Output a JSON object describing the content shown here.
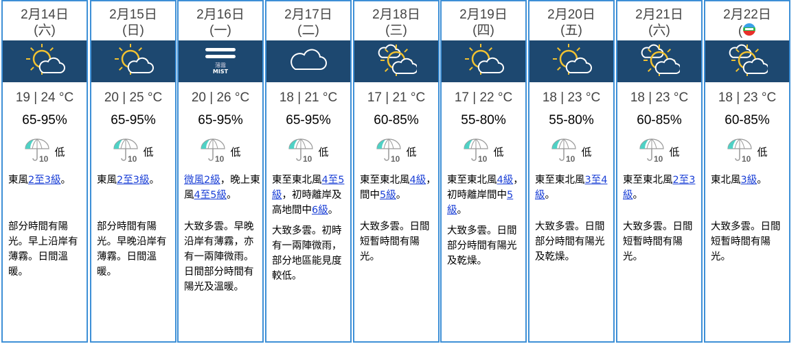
{
  "colors": {
    "border": "#3d8fd6",
    "icon_band": "#1d4870",
    "sun": "#f2c230",
    "link": "#1a3fd6"
  },
  "days": [
    {
      "date": "2月14日",
      "weekday": "(六)",
      "icon": "sun-cloud-icon",
      "temp": "19 | 24 °C",
      "humidity": "65-95%",
      "psr": "低",
      "wind": [
        {
          "t": "東風"
        },
        {
          "t": "2至3級",
          "link": true
        },
        {
          "t": "。"
        }
      ],
      "desc": "部分時間有陽光。早上沿岸有薄霧。日間溫暖。"
    },
    {
      "date": "2月15日",
      "weekday": "(日)",
      "icon": "sun-cloud-icon",
      "temp": "20 | 25 °C",
      "humidity": "65-95%",
      "psr": "低",
      "wind": [
        {
          "t": "東風"
        },
        {
          "t": "2至3級",
          "link": true
        },
        {
          "t": "。"
        }
      ],
      "desc": "部分時間有陽光。早晚沿岸有薄霧。日間溫暖。"
    },
    {
      "date": "2月16日",
      "weekday": "(一)",
      "icon": "mist-icon",
      "icon_label_zh": "薄霧",
      "icon_label_en": "MIST",
      "temp": "20 | 26 °C",
      "humidity": "65-95%",
      "psr": "低",
      "wind": [
        {
          "t": "微風2級",
          "link": true
        },
        {
          "t": "，晚上東風"
        },
        {
          "t": "4至5級",
          "link": true
        },
        {
          "t": "。"
        }
      ],
      "desc": "大致多雲。早晚沿岸有薄霧，亦有一兩陣微雨。日間部分時間有陽光及溫暖。"
    },
    {
      "date": "2月17日",
      "weekday": "(二)",
      "icon": "cloud-icon",
      "temp": "18 | 21 °C",
      "humidity": "65-95%",
      "psr": "低",
      "wind": [
        {
          "t": "東至東北風"
        },
        {
          "t": "4至5級",
          "link": true
        },
        {
          "t": "，初時離岸及高地間中"
        },
        {
          "t": "6級",
          "link": true
        },
        {
          "t": "。"
        }
      ],
      "desc": "大致多雲。初時有一兩陣微雨，部分地區能見度較低。"
    },
    {
      "date": "2月18日",
      "weekday": "(三)",
      "icon": "mostly-cloudy-icon",
      "temp": "17 | 21 °C",
      "humidity": "60-85%",
      "psr": "低",
      "wind": [
        {
          "t": "東至東北風"
        },
        {
          "t": "4級",
          "link": true
        },
        {
          "t": "，間中"
        },
        {
          "t": "5級",
          "link": true
        },
        {
          "t": "。"
        }
      ],
      "desc": "大致多雲。日間短暫時間有陽光。"
    },
    {
      "date": "2月19日",
      "weekday": "(四)",
      "icon": "sun-cloud-icon",
      "temp": "17 | 22 °C",
      "humidity": "55-80%",
      "psr": "低",
      "wind": [
        {
          "t": "東至東北風"
        },
        {
          "t": "4級",
          "link": true
        },
        {
          "t": "，初時離岸間中"
        },
        {
          "t": "5級",
          "link": true
        },
        {
          "t": "。"
        }
      ],
      "desc": "大致多雲。日間部分時間有陽光及乾燥。"
    },
    {
      "date": "2月20日",
      "weekday": "(五)",
      "icon": "sun-cloud-icon",
      "temp": "18 | 23 °C",
      "humidity": "55-80%",
      "psr": "低",
      "wind": [
        {
          "t": "東至東北風"
        },
        {
          "t": "3至4級",
          "link": true
        },
        {
          "t": "。"
        }
      ],
      "desc": "大致多雲。日間部分時間有陽光及乾燥。"
    },
    {
      "date": "2月21日",
      "weekday": "(六)",
      "icon": "mostly-cloudy-icon",
      "temp": "18 | 23 °C",
      "humidity": "60-85%",
      "psr": "低",
      "wind": [
        {
          "t": "東至東北風"
        },
        {
          "t": "2至3級",
          "link": true
        },
        {
          "t": "。"
        }
      ],
      "desc": "大致多雲。日間短暫時間有陽光。"
    },
    {
      "date": "2月22日",
      "weekday": "(",
      "weekday_obscured_by_logo": true,
      "icon": "mostly-cloudy-icon",
      "temp": "18 | 23 °C",
      "humidity": "60-85%",
      "psr": "低",
      "wind": [
        {
          "t": "東北風"
        },
        {
          "t": "3級",
          "link": true
        },
        {
          "t": "。"
        }
      ],
      "desc": "大致多雲。日間短暫時間有陽光。"
    }
  ]
}
